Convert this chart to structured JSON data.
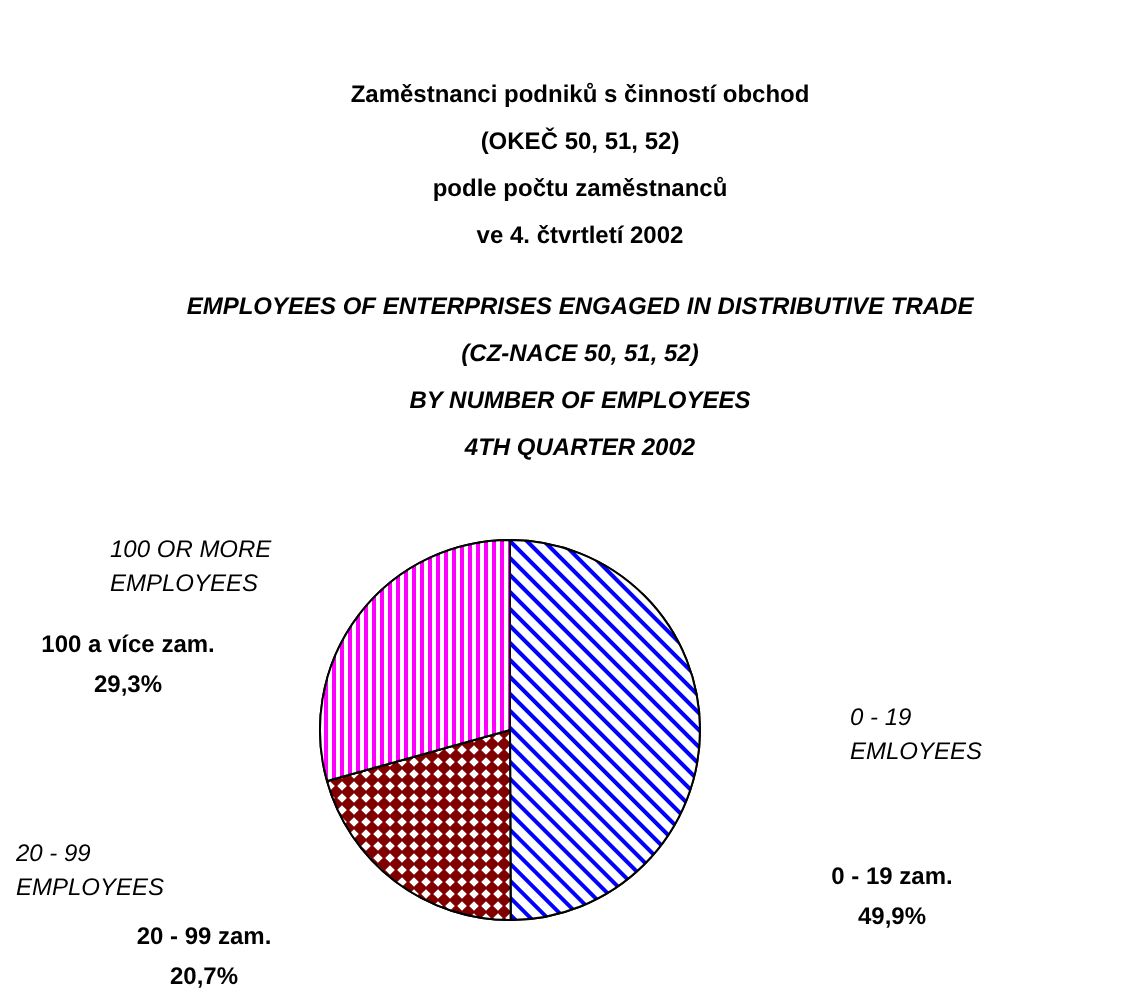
{
  "chart_data": {
    "type": "pie",
    "title": "Zaměstnanci podniků s činností obchod\n(OKEČ 50, 51, 52)\npodle počtu zaměstnanců\nve 4. čtvrtletí 2002",
    "subtitle": "EMPLOYEES OF ENTERPRISES ENGAGED IN DISTRIBUTIVE TRADE\n(CZ-NACE 50, 51, 52)\nBY NUMBER OF EMPLOYEES\n4TH QUARTER 2002",
    "categories": [
      "0 - 19 zam.",
      "20 - 99 zam.",
      "100 a více zam."
    ],
    "values": [
      49.9,
      20.7,
      29.3
    ],
    "colors": [
      "#0000ff",
      "#800000",
      "#ff00ff"
    ],
    "value_labels": [
      "49,9%",
      "20,7%",
      "29,3%"
    ],
    "annotations": [
      "0 - 19\nEMLOYEES",
      "20 - 99\nEMPLOYEES",
      "100 OR MORE\nEMPLOYEES"
    ]
  }
}
